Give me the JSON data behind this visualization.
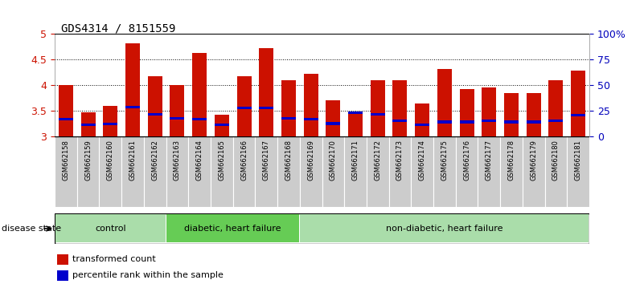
{
  "title": "GDS4314 / 8151559",
  "samples": [
    "GSM662158",
    "GSM662159",
    "GSM662160",
    "GSM662161",
    "GSM662162",
    "GSM662163",
    "GSM662164",
    "GSM662165",
    "GSM662166",
    "GSM662167",
    "GSM662168",
    "GSM662169",
    "GSM662170",
    "GSM662171",
    "GSM662172",
    "GSM662173",
    "GSM662174",
    "GSM662175",
    "GSM662176",
    "GSM662177",
    "GSM662178",
    "GSM662179",
    "GSM662180",
    "GSM662181"
  ],
  "red_values": [
    4.0,
    3.47,
    3.6,
    4.82,
    4.18,
    4.0,
    4.63,
    3.43,
    4.18,
    4.72,
    4.1,
    4.23,
    3.7,
    3.46,
    4.1,
    4.1,
    3.65,
    4.32,
    3.92,
    3.95,
    3.85,
    3.85,
    4.1,
    4.28
  ],
  "blue_values": [
    3.33,
    3.22,
    3.24,
    3.57,
    3.43,
    3.35,
    3.33,
    3.22,
    3.55,
    3.55,
    3.35,
    3.33,
    3.25,
    3.46,
    3.43,
    3.3,
    3.22,
    3.28,
    3.28,
    3.3,
    3.28,
    3.28,
    3.3,
    3.42
  ],
  "groups": [
    {
      "label": "control",
      "start": 0,
      "end": 5,
      "color": "#aaddaa"
    },
    {
      "label": "diabetic, heart failure",
      "start": 5,
      "end": 11,
      "color": "#66cc55"
    },
    {
      "label": "non-diabetic, heart failure",
      "start": 11,
      "end": 24,
      "color": "#aaddaa"
    }
  ],
  "ylim": [
    3.0,
    5.0
  ],
  "yticks": [
    3.0,
    3.5,
    4.0,
    4.5,
    5.0
  ],
  "ytick_labels": [
    "3",
    "3.5",
    "4",
    "4.5",
    "5"
  ],
  "right_yticks": [
    0,
    25,
    50,
    75,
    100
  ],
  "right_ytick_labels": [
    "0",
    "25",
    "50",
    "75",
    "100%"
  ],
  "bar_color": "#cc1100",
  "blue_color": "#0000cc",
  "tick_color": "#cc1100",
  "right_tick_color": "#0000bb",
  "bg_color": "#ffffff",
  "bar_width": 0.65,
  "label_bg_color": "#cccccc",
  "disease_state_label": "disease state",
  "legend_items": [
    {
      "color": "#cc1100",
      "label": "transformed count"
    },
    {
      "color": "#0000cc",
      "label": "percentile rank within the sample"
    }
  ]
}
